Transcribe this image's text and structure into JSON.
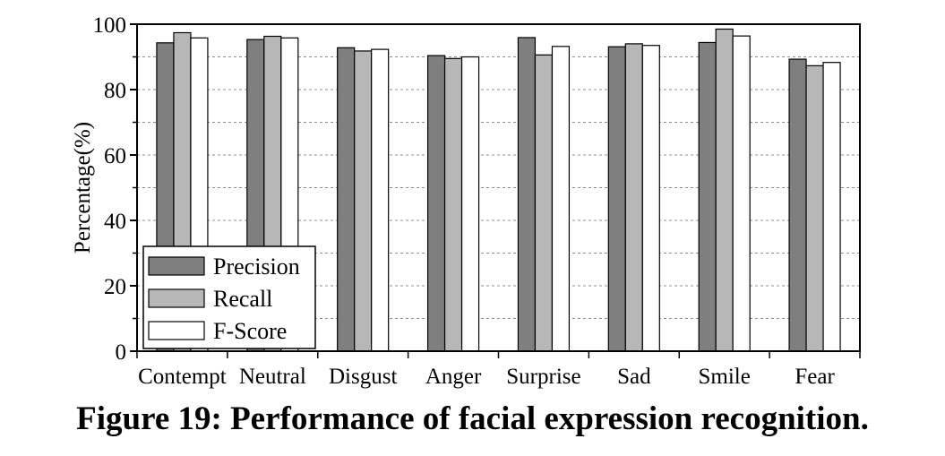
{
  "figure": {
    "caption": "Figure 19: Performance of facial expression recognition."
  },
  "chart_data": {
    "type": "bar",
    "categories": [
      "Contempt",
      "Neutral",
      "Disgust",
      "Anger",
      "Surprise",
      "Sad",
      "Smile",
      "Fear"
    ],
    "series": [
      {
        "name": "Precision",
        "color": "#7f7f7f",
        "values": [
          94.3,
          95.3,
          92.8,
          90.4,
          95.9,
          93.1,
          94.4,
          89.3
        ]
      },
      {
        "name": "Recall",
        "color": "#b7b7b7",
        "values": [
          97.4,
          96.3,
          91.8,
          89.5,
          90.6,
          94.0,
          98.5,
          87.3
        ]
      },
      {
        "name": "F-Score",
        "color": "#ffffff",
        "values": [
          95.8,
          95.8,
          92.3,
          90.0,
          93.2,
          93.5,
          96.4,
          88.3
        ]
      }
    ],
    "title": "",
    "xlabel": "",
    "ylabel": "Percentage(%)",
    "ylim": [
      0,
      100
    ],
    "yticks": [
      0,
      20,
      40,
      60,
      80,
      100
    ],
    "grid": "horizontal dashed",
    "legend_position": "bottom-left"
  }
}
